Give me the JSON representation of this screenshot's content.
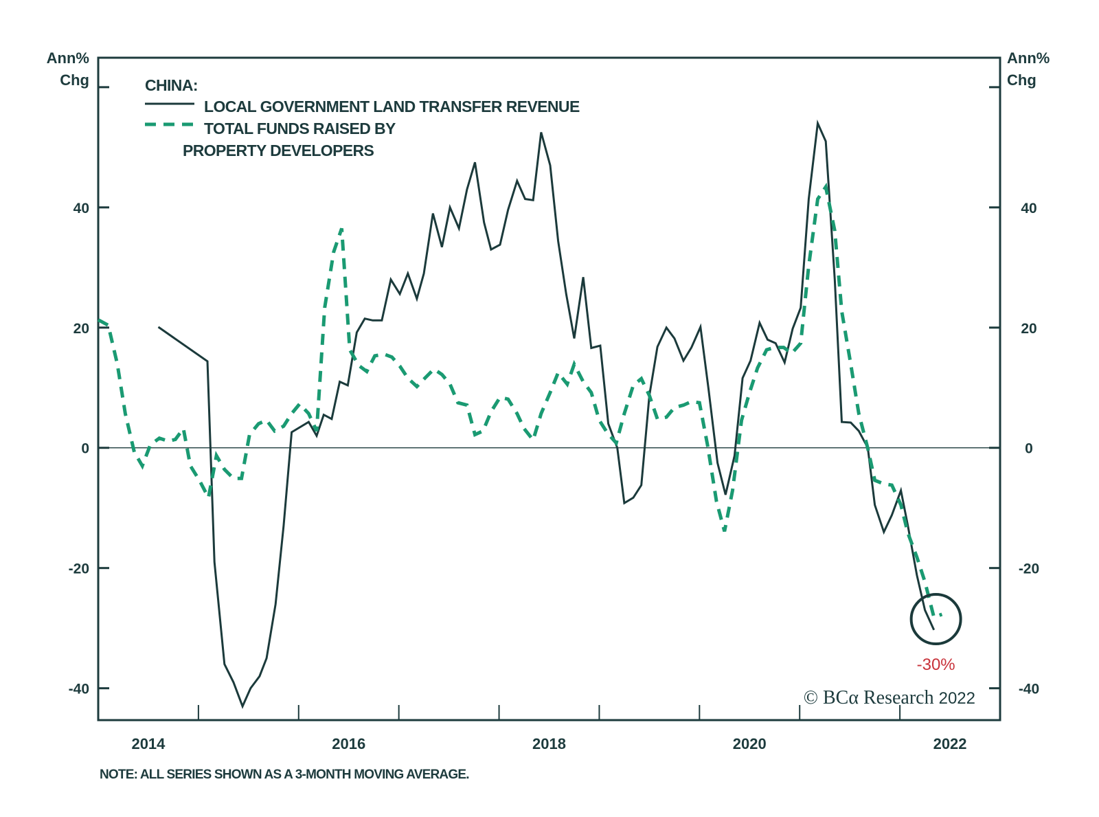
{
  "chart_data": {
    "type": "line",
    "title": "CHINA:",
    "ylabel_left": "Ann% Chg",
    "ylabel_right": "Ann% Chg",
    "xlabel": "",
    "x_tick_labels": [
      "2014",
      "2016",
      "2018",
      "2020",
      "2022"
    ],
    "x_tick_label_years": [
      2014,
      2016,
      2018,
      2020,
      2022
    ],
    "x_minor_ticks": [
      2015,
      2016,
      2017,
      2018,
      2019,
      2020,
      2021,
      2022
    ],
    "xlim": [
      2014.0,
      2023.0
    ],
    "y_tick_labels": [
      "-40",
      "-20",
      "0",
      "20",
      "40"
    ],
    "y_ticks": [
      -40,
      -20,
      0,
      20,
      40,
      60
    ],
    "ylim": [
      -45.3,
      64.9
    ],
    "grid": false,
    "zero_line": true,
    "legend_position": "top-left",
    "series": [
      {
        "name": "LOCAL GOVERNMENT LAND TRANSFER REVENUE",
        "style": "solid",
        "color": "#1b3a3b",
        "points": [
          [
            2014.6,
            20.1
          ],
          [
            2015.09,
            14.4
          ],
          [
            2015.16,
            -19
          ],
          [
            2015.26,
            -36
          ],
          [
            2015.35,
            -39
          ],
          [
            2015.44,
            -43
          ],
          [
            2015.52,
            -40
          ],
          [
            2015.61,
            -38
          ],
          [
            2015.68,
            -35
          ],
          [
            2015.77,
            -26
          ],
          [
            2015.85,
            -13
          ],
          [
            2015.93,
            2.6
          ],
          [
            2016.01,
            3.4
          ],
          [
            2016.1,
            4.3
          ],
          [
            2016.18,
            2
          ],
          [
            2016.25,
            5.5
          ],
          [
            2016.33,
            4.8
          ],
          [
            2016.41,
            11
          ],
          [
            2016.49,
            10.4
          ],
          [
            2016.58,
            19.2
          ],
          [
            2016.66,
            21.5
          ],
          [
            2016.74,
            21.2
          ],
          [
            2016.83,
            21.2
          ],
          [
            2016.92,
            28
          ],
          [
            2017.01,
            25.6
          ],
          [
            2017.09,
            29
          ],
          [
            2017.18,
            24.8
          ],
          [
            2017.25,
            29
          ],
          [
            2017.34,
            39
          ],
          [
            2017.43,
            33.4
          ],
          [
            2017.51,
            40
          ],
          [
            2017.6,
            36.5
          ],
          [
            2017.68,
            43
          ],
          [
            2017.76,
            47.5
          ],
          [
            2017.85,
            37.5
          ],
          [
            2017.92,
            33
          ],
          [
            2018.01,
            33.8
          ],
          [
            2018.09,
            39.6
          ],
          [
            2018.18,
            44.4
          ],
          [
            2018.26,
            41.4
          ],
          [
            2018.34,
            41.2
          ],
          [
            2018.42,
            52.5
          ],
          [
            2018.51,
            47
          ],
          [
            2018.59,
            34.4
          ],
          [
            2018.67,
            25.6
          ],
          [
            2018.75,
            18.2
          ],
          [
            2018.84,
            28.4
          ],
          [
            2018.92,
            16.6
          ],
          [
            2019.01,
            17
          ],
          [
            2019.09,
            4
          ],
          [
            2019.18,
            0
          ],
          [
            2019.25,
            -9.2
          ],
          [
            2019.34,
            -8.3
          ],
          [
            2019.42,
            -6.2
          ],
          [
            2019.5,
            8.7
          ],
          [
            2019.58,
            16.8
          ],
          [
            2019.67,
            20
          ],
          [
            2019.75,
            18.2
          ],
          [
            2019.84,
            14.5
          ],
          [
            2019.92,
            16.7
          ],
          [
            2020.01,
            20.1
          ],
          [
            2020.09,
            9.8
          ],
          [
            2020.18,
            -2.5
          ],
          [
            2020.26,
            -7.8
          ],
          [
            2020.35,
            -1.3
          ],
          [
            2020.43,
            11.6
          ],
          [
            2020.51,
            14.5
          ],
          [
            2020.6,
            20.8
          ],
          [
            2020.68,
            18
          ],
          [
            2020.76,
            17.4
          ],
          [
            2020.85,
            14.2
          ],
          [
            2020.93,
            19.8
          ],
          [
            2021.01,
            23.3
          ],
          [
            2021.09,
            41.4
          ],
          [
            2021.18,
            54
          ],
          [
            2021.26,
            51
          ],
          [
            2021.35,
            28
          ],
          [
            2021.42,
            4.3
          ],
          [
            2021.51,
            4.2
          ],
          [
            2021.59,
            2.8
          ],
          [
            2021.68,
            0
          ],
          [
            2021.75,
            -9.5
          ],
          [
            2021.84,
            -14
          ],
          [
            2021.92,
            -11.2
          ],
          [
            2022.01,
            -7.1
          ],
          [
            2022.08,
            -13
          ],
          [
            2022.17,
            -21.2
          ],
          [
            2022.25,
            -27
          ],
          [
            2022.34,
            -30.3
          ]
        ]
      },
      {
        "name": "TOTAL FUNDS RAISED BY PROPERTY DEVELOPERS",
        "style": "dashed",
        "color": "#1a9a72",
        "points": [
          [
            2014.0,
            21.3
          ],
          [
            2014.1,
            20.4
          ],
          [
            2014.19,
            14
          ],
          [
            2014.27,
            5.7
          ],
          [
            2014.36,
            -0.7
          ],
          [
            2014.44,
            -3
          ],
          [
            2014.52,
            0.5
          ],
          [
            2014.61,
            1.6
          ],
          [
            2014.7,
            1.1
          ],
          [
            2014.77,
            1.4
          ],
          [
            2014.85,
            3.2
          ],
          [
            2014.92,
            -3
          ],
          [
            2015.01,
            -5.4
          ],
          [
            2015.1,
            -8.3
          ],
          [
            2015.18,
            -1.3
          ],
          [
            2015.26,
            -3.6
          ],
          [
            2015.35,
            -5.1
          ],
          [
            2015.43,
            -5.1
          ],
          [
            2015.51,
            2.2
          ],
          [
            2015.6,
            4
          ],
          [
            2015.68,
            4.6
          ],
          [
            2015.76,
            2.8
          ],
          [
            2015.85,
            3.6
          ],
          [
            2015.93,
            5.7
          ],
          [
            2016.01,
            7.3
          ],
          [
            2016.1,
            5.7
          ],
          [
            2016.18,
            2.8
          ],
          [
            2016.26,
            23.3
          ],
          [
            2016.35,
            32.6
          ],
          [
            2016.43,
            36.5
          ],
          [
            2016.51,
            16.3
          ],
          [
            2016.6,
            13.7
          ],
          [
            2016.68,
            12.7
          ],
          [
            2016.76,
            15.3
          ],
          [
            2016.85,
            15.6
          ],
          [
            2016.93,
            15.1
          ],
          [
            2017.01,
            13.6
          ],
          [
            2017.09,
            11.6
          ],
          [
            2017.18,
            10.2
          ],
          [
            2017.26,
            11.6
          ],
          [
            2017.35,
            13.1
          ],
          [
            2017.43,
            12.2
          ],
          [
            2017.51,
            10.6
          ],
          [
            2017.59,
            7.5
          ],
          [
            2017.68,
            7.1
          ],
          [
            2017.76,
            2.2
          ],
          [
            2017.84,
            2.8
          ],
          [
            2017.92,
            6
          ],
          [
            2018.01,
            8.4
          ],
          [
            2018.09,
            8.1
          ],
          [
            2018.18,
            5.7
          ],
          [
            2018.25,
            3.2
          ],
          [
            2018.34,
            1.3
          ],
          [
            2018.42,
            5.7
          ],
          [
            2018.51,
            9.2
          ],
          [
            2018.59,
            12.5
          ],
          [
            2018.68,
            10.6
          ],
          [
            2018.75,
            13.9
          ],
          [
            2018.84,
            11
          ],
          [
            2018.92,
            9.2
          ],
          [
            2019.0,
            4.6
          ],
          [
            2019.08,
            2.5
          ],
          [
            2019.17,
            0.8
          ],
          [
            2019.25,
            5.7
          ],
          [
            2019.34,
            10.4
          ],
          [
            2019.42,
            11.5
          ],
          [
            2019.5,
            8.7
          ],
          [
            2019.58,
            4.8
          ],
          [
            2019.67,
            5.1
          ],
          [
            2019.75,
            6.7
          ],
          [
            2019.84,
            7.1
          ],
          [
            2019.92,
            7.7
          ],
          [
            2020.0,
            7.5
          ],
          [
            2020.08,
            0.5
          ],
          [
            2020.17,
            -8.9
          ],
          [
            2020.25,
            -13.9
          ],
          [
            2020.33,
            -7.1
          ],
          [
            2020.42,
            4.6
          ],
          [
            2020.5,
            9.2
          ],
          [
            2020.58,
            13.3
          ],
          [
            2020.67,
            16.3
          ],
          [
            2020.75,
            16.7
          ],
          [
            2020.84,
            16.7
          ],
          [
            2020.92,
            15.7
          ],
          [
            2021.01,
            17.4
          ],
          [
            2021.09,
            30.3
          ],
          [
            2021.18,
            41.4
          ],
          [
            2021.26,
            43.4
          ],
          [
            2021.35,
            36.1
          ],
          [
            2021.42,
            22.7
          ],
          [
            2021.51,
            13.9
          ],
          [
            2021.59,
            5.7
          ],
          [
            2021.68,
            -0.1
          ],
          [
            2021.75,
            -5.4
          ],
          [
            2021.84,
            -6
          ],
          [
            2021.92,
            -6.2
          ],
          [
            2022.01,
            -9.5
          ],
          [
            2022.08,
            -14.2
          ],
          [
            2022.17,
            -18.2
          ],
          [
            2022.25,
            -22.3
          ],
          [
            2022.34,
            -28.2
          ],
          [
            2022.42,
            -27.7
          ]
        ]
      }
    ],
    "annotations": [
      {
        "type": "circle",
        "target_year": 2022.36,
        "target_value": -28.5,
        "label": "-30%",
        "label_color": "#c8323a"
      }
    ],
    "note": "NOTE: ALL SERIES SHOWN AS A 3-MONTH MOVING AVERAGE.",
    "source": "© BCA Research 2022"
  },
  "legend": {
    "heading": "CHINA:",
    "items": [
      {
        "label_lines": [
          "LOCAL GOVERNMENT LAND TRANSFER REVENUE"
        ],
        "style": "solid",
        "color": "#1b3a3b"
      },
      {
        "label_lines": [
          "TOTAL FUNDS RAISED BY",
          "PROPERTY DEVELOPERS"
        ],
        "style": "dashed",
        "color": "#1a9a72"
      }
    ]
  },
  "axes": {
    "left_unit_line1": "Ann%",
    "left_unit_line2": "Chg",
    "right_unit_line1": "Ann%",
    "right_unit_line2": "Chg"
  },
  "callout": {
    "label": "-30%",
    "color": "#c8323a"
  },
  "copyright": {
    "symbol": "©",
    "brand": "BCα",
    "text": "Research",
    "year": "2022"
  },
  "note": "NOTE: ALL SERIES SHOWN AS A 3-MONTH MOVING AVERAGE.",
  "colors": {
    "ink": "#1d3b3d",
    "solid_series": "#1b3a3b",
    "dashed_series": "#1a9a72",
    "callout": "#c8323a"
  }
}
